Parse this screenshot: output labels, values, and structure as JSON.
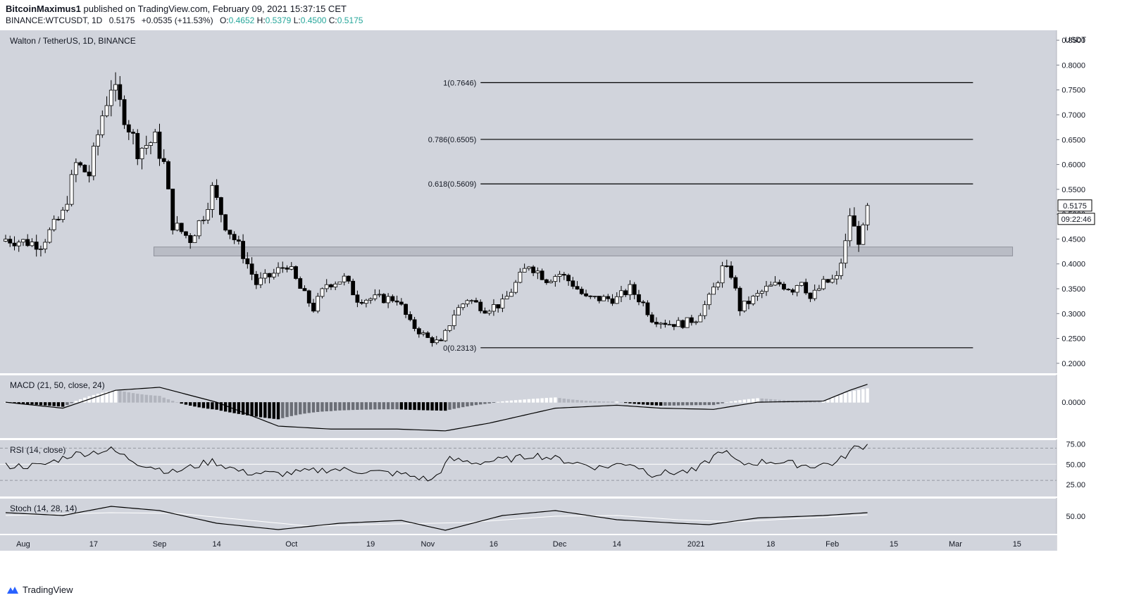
{
  "header": {
    "author": "BitcoinMaximus1",
    "published_text": "published on TradingView.com, February 09, 2021 15:37:15 CET",
    "symbol": "BINANCE:WTCUSDT, 1D",
    "last": "0.5175",
    "change": "+0.0535 (+11.53%)",
    "o_label": "O:",
    "o": "0.4652",
    "h_label": "H:",
    "h": "0.5379",
    "l_label": "L:",
    "l": "0.4500",
    "c_label": "C:",
    "c": "0.5175"
  },
  "footer": {
    "brand": "TradingView"
  },
  "colors": {
    "panel_bg": "#d1d4dc",
    "candle_up": "#ffffff",
    "candle_down": "#000000",
    "fib_line": "#000000",
    "zone_fill": "#b9bcc5",
    "macd_line": "#000000",
    "rsi_line": "#000000",
    "stoch_k": "#000000",
    "stoch_d": "#ffffff"
  },
  "chart_data": [
    {
      "type": "candlestick",
      "title": "Walton / TetherUS, 1D, BINANCE",
      "axis_unit": "USDT",
      "ylim": [
        0.18,
        0.87
      ],
      "yticks": [
        0.2,
        0.25,
        0.3,
        0.35,
        0.4,
        0.45,
        0.5,
        0.55,
        0.6,
        0.65,
        0.7,
        0.75,
        0.8,
        0.85
      ],
      "ytick_labels": [
        "0.2000",
        "0.2500",
        "0.3000",
        "0.3500",
        "0.4000",
        "0.4500",
        "0.5000",
        "0.5500",
        "0.6000",
        "0.6500",
        "0.7000",
        "0.7500",
        "0.8000",
        "0.8500"
      ],
      "current_price_label": "0.5175",
      "countdown_label": "09:22:46",
      "fib_levels": [
        {
          "label": "1(0.7646)",
          "value": 0.7646
        },
        {
          "label": "0.786(0.6505)",
          "value": 0.6505
        },
        {
          "label": "0.618(0.5609)",
          "value": 0.5609
        },
        {
          "label": "0(0.2313)",
          "value": 0.2313
        }
      ],
      "fib_x_range": [
        "2020-11-05",
        "2021-03-05"
      ],
      "zone": {
        "x_range": [
          "2020-09-01",
          "2021-03-14"
        ],
        "y_range": [
          0.416,
          0.434
        ]
      },
      "close_anchors": [
        [
          "2020-07-28",
          0.45
        ],
        [
          "2020-08-05",
          0.44
        ],
        [
          "2020-08-10",
          0.5
        ],
        [
          "2020-08-13",
          0.6
        ],
        [
          "2020-08-16",
          0.58
        ],
        [
          "2020-08-19",
          0.7
        ],
        [
          "2020-08-21",
          0.76
        ],
        [
          "2020-08-24",
          0.7
        ],
        [
          "2020-08-27",
          0.63
        ],
        [
          "2020-08-31",
          0.65
        ],
        [
          "2020-09-02",
          0.6
        ],
        [
          "2020-09-04",
          0.48
        ],
        [
          "2020-09-08",
          0.45
        ],
        [
          "2020-09-11",
          0.5
        ],
        [
          "2020-09-13",
          0.55
        ],
        [
          "2020-09-16",
          0.48
        ],
        [
          "2020-09-20",
          0.42
        ],
        [
          "2020-09-23",
          0.36
        ],
        [
          "2020-09-27",
          0.38
        ],
        [
          "2020-09-30",
          0.4
        ],
        [
          "2020-10-03",
          0.35
        ],
        [
          "2020-10-06",
          0.31
        ],
        [
          "2020-10-09",
          0.36
        ],
        [
          "2020-10-13",
          0.37
        ],
        [
          "2020-10-16",
          0.33
        ],
        [
          "2020-10-20",
          0.33
        ],
        [
          "2020-10-25",
          0.33
        ],
        [
          "2020-10-28",
          0.28
        ],
        [
          "2020-11-01",
          0.25
        ],
        [
          "2020-11-04",
          0.24
        ],
        [
          "2020-11-07",
          0.3
        ],
        [
          "2020-11-10",
          0.33
        ],
        [
          "2020-11-14",
          0.31
        ],
        [
          "2020-11-18",
          0.32
        ],
        [
          "2020-11-21",
          0.36
        ],
        [
          "2020-11-24",
          0.4
        ],
        [
          "2020-11-28",
          0.37
        ],
        [
          "2020-12-01",
          0.38
        ],
        [
          "2020-12-04",
          0.36
        ],
        [
          "2020-12-07",
          0.33
        ],
        [
          "2020-12-10",
          0.33
        ],
        [
          "2020-12-14",
          0.33
        ],
        [
          "2020-12-17",
          0.35
        ],
        [
          "2020-12-20",
          0.32
        ],
        [
          "2020-12-22",
          0.29
        ],
        [
          "2020-12-26",
          0.28
        ],
        [
          "2020-12-29",
          0.28
        ],
        [
          "2021-01-01",
          0.29
        ],
        [
          "2021-01-04",
          0.33
        ],
        [
          "2021-01-07",
          0.39
        ],
        [
          "2021-01-09",
          0.38
        ],
        [
          "2021-01-11",
          0.31
        ],
        [
          "2021-01-14",
          0.33
        ],
        [
          "2021-01-17",
          0.35
        ],
        [
          "2021-01-20",
          0.36
        ],
        [
          "2021-01-23",
          0.35
        ],
        [
          "2021-01-25",
          0.37
        ],
        [
          "2021-01-27",
          0.33
        ],
        [
          "2021-01-30",
          0.36
        ],
        [
          "2021-02-02",
          0.37
        ],
        [
          "2021-02-04",
          0.44
        ],
        [
          "2021-02-05",
          0.5
        ],
        [
          "2021-02-06",
          0.47
        ],
        [
          "2021-02-07",
          0.45
        ],
        [
          "2021-02-08",
          0.465
        ],
        [
          "2021-02-09",
          0.5175
        ]
      ]
    },
    {
      "type": "line+histogram",
      "title": "MACD (21, 50, close, 24)",
      "yticks": [
        0
      ],
      "ytick_labels": [
        "0.0000"
      ],
      "macd_anchors": [
        [
          "2020-07-28",
          0.0
        ],
        [
          "2020-08-10",
          -0.01
        ],
        [
          "2020-08-22",
          0.02
        ],
        [
          "2020-09-01",
          0.025
        ],
        [
          "2020-09-14",
          0.0
        ],
        [
          "2020-09-28",
          -0.04
        ],
        [
          "2020-10-10",
          -0.045
        ],
        [
          "2020-10-25",
          -0.045
        ],
        [
          "2020-11-05",
          -0.048
        ],
        [
          "2020-11-15",
          -0.035
        ],
        [
          "2020-11-30",
          -0.01
        ],
        [
          "2020-12-14",
          -0.005
        ],
        [
          "2020-12-24",
          -0.01
        ],
        [
          "2021-01-05",
          -0.012
        ],
        [
          "2021-01-15",
          0.0
        ],
        [
          "2021-01-30",
          0.002
        ],
        [
          "2021-02-05",
          0.02
        ],
        [
          "2021-02-09",
          0.03
        ]
      ],
      "ylim": [
        -0.06,
        0.045
      ]
    },
    {
      "type": "line",
      "title": "RSI (14, close)",
      "yticks": [
        25,
        50,
        75
      ],
      "ytick_labels": [
        "25.00",
        "50.00",
        "75.00"
      ],
      "ylim": [
        10,
        80
      ],
      "bands": [
        30,
        70
      ],
      "rsi_anchors": [
        [
          "2020-07-28",
          48
        ],
        [
          "2020-08-05",
          48
        ],
        [
          "2020-08-12",
          62
        ],
        [
          "2020-08-21",
          68
        ],
        [
          "2020-08-27",
          52
        ],
        [
          "2020-09-04",
          40
        ],
        [
          "2020-09-13",
          54
        ],
        [
          "2020-09-20",
          40
        ],
        [
          "2020-09-28",
          38
        ],
        [
          "2020-10-03",
          40
        ],
        [
          "2020-10-10",
          44
        ],
        [
          "2020-10-16",
          42
        ],
        [
          "2020-10-26",
          38
        ],
        [
          "2020-11-02",
          30
        ],
        [
          "2020-11-06",
          56
        ],
        [
          "2020-11-12",
          52
        ],
        [
          "2020-11-22",
          58
        ],
        [
          "2020-11-25",
          62
        ],
        [
          "2020-12-01",
          56
        ],
        [
          "2020-12-10",
          46
        ],
        [
          "2020-12-17",
          52
        ],
        [
          "2020-12-22",
          38
        ],
        [
          "2021-01-01",
          42
        ],
        [
          "2021-01-07",
          68
        ],
        [
          "2021-01-11",
          50
        ],
        [
          "2021-01-18",
          54
        ],
        [
          "2021-01-27",
          48
        ],
        [
          "2021-02-02",
          52
        ],
        [
          "2021-02-06",
          70
        ],
        [
          "2021-02-09",
          74
        ]
      ]
    },
    {
      "type": "line",
      "title": "Stoch (14, 28, 14)",
      "yticks": [
        50
      ],
      "ytick_labels": [
        "50.00"
      ],
      "ylim": [
        0,
        100
      ],
      "stoch_k_anchors": [
        [
          "2020-07-28",
          60
        ],
        [
          "2020-08-10",
          52
        ],
        [
          "2020-08-21",
          78
        ],
        [
          "2020-09-01",
          66
        ],
        [
          "2020-09-14",
          30
        ],
        [
          "2020-09-28",
          12
        ],
        [
          "2020-10-12",
          30
        ],
        [
          "2020-10-26",
          38
        ],
        [
          "2020-11-05",
          10
        ],
        [
          "2020-11-18",
          52
        ],
        [
          "2020-11-30",
          66
        ],
        [
          "2020-12-14",
          40
        ],
        [
          "2020-12-28",
          30
        ],
        [
          "2021-01-04",
          26
        ],
        [
          "2021-01-15",
          45
        ],
        [
          "2021-01-30",
          52
        ],
        [
          "2021-02-09",
          60
        ]
      ],
      "stoch_d_anchors": [
        [
          "2020-07-28",
          52
        ],
        [
          "2020-08-21",
          60
        ],
        [
          "2020-09-05",
          58
        ],
        [
          "2020-09-20",
          40
        ],
        [
          "2020-10-05",
          22
        ],
        [
          "2020-10-25",
          28
        ],
        [
          "2020-11-10",
          32
        ],
        [
          "2020-11-30",
          50
        ],
        [
          "2020-12-14",
          52
        ],
        [
          "2020-12-28",
          40
        ],
        [
          "2021-01-10",
          34
        ],
        [
          "2021-02-09",
          54
        ]
      ]
    }
  ],
  "x_axis": {
    "ticks": [
      {
        "label": "Aug",
        "date": "2020-08-01"
      },
      {
        "label": "17",
        "date": "2020-08-17"
      },
      {
        "label": "Sep",
        "date": "2020-09-01"
      },
      {
        "label": "14",
        "date": "2020-09-14"
      },
      {
        "label": "Oct",
        "date": "2020-10-01"
      },
      {
        "label": "19",
        "date": "2020-10-19"
      },
      {
        "label": "Nov",
        "date": "2020-11-01"
      },
      {
        "label": "16",
        "date": "2020-11-16"
      },
      {
        "label": "Dec",
        "date": "2020-12-01"
      },
      {
        "label": "14",
        "date": "2020-12-14"
      },
      {
        "label": "2021",
        "date": "2021-01-01"
      },
      {
        "label": "18",
        "date": "2021-01-18"
      },
      {
        "label": "Feb",
        "date": "2021-02-01"
      },
      {
        "label": "15",
        "date": "2021-02-15"
      },
      {
        "label": "Mar",
        "date": "2021-03-01"
      },
      {
        "label": "15",
        "date": "2021-03-15"
      }
    ],
    "range": [
      "2020-07-28",
      "2021-03-24"
    ]
  }
}
